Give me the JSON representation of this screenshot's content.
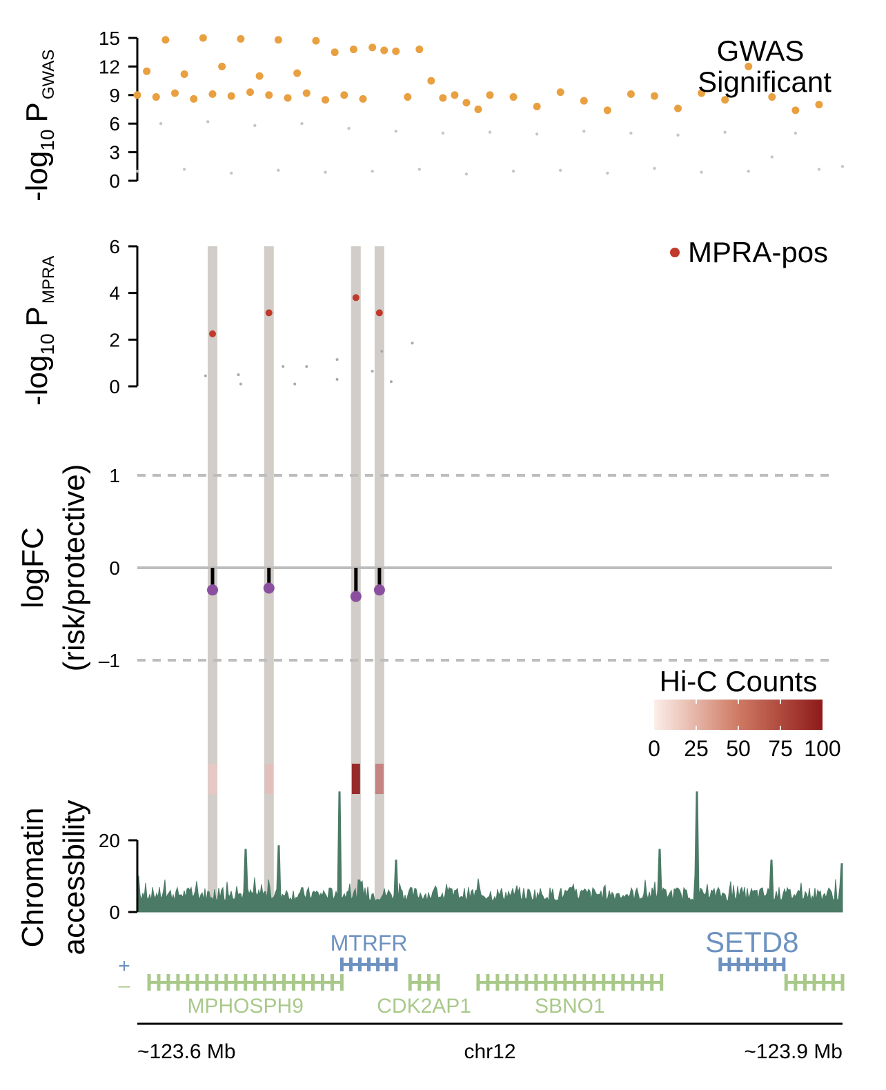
{
  "colors": {
    "gwas_sig": "#e8a040",
    "gwas_nonsig": "#c6c6c6",
    "mpra_pos": "#c0392b",
    "logfc_point": "#8a4f9e",
    "highlight_band": "#d2cdc8",
    "accessibility": "#4b7a66",
    "gene_minus": "#a9c98a",
    "gene_plus": "#6d92c0",
    "hic_low": "#fbeee9",
    "hic_high": "#8e1a1a"
  },
  "chart_data": [
    {
      "type": "scatter",
      "panel": "gwas",
      "ylabel_main": "-log",
      "ylabel_sub": "10",
      "ylabel_p": "P",
      "ylabel_subscript": "GWAS",
      "ylim": [
        0,
        15
      ],
      "yticks": [
        "0",
        "3",
        "6",
        "9",
        "12",
        "15"
      ],
      "legend": {
        "line1": "GWAS",
        "line2": "Significant",
        "position": "top-right"
      },
      "significant_points_x": [
        123.6,
        123.604,
        123.608,
        123.612,
        123.616,
        123.62,
        123.624,
        123.628,
        123.632,
        123.636,
        123.64,
        123.644,
        123.648,
        123.652,
        123.656,
        123.66,
        123.664,
        123.668,
        123.672,
        123.676,
        123.68,
        123.684,
        123.688,
        123.692,
        123.696,
        123.7,
        123.705,
        123.71,
        123.715,
        123.72,
        123.725,
        123.73,
        123.735,
        123.74,
        123.745,
        123.75,
        123.76,
        123.77,
        123.78,
        123.79,
        123.8,
        123.81,
        123.82,
        123.83,
        123.84,
        123.85,
        123.86,
        123.87,
        123.88,
        123.89
      ],
      "significant_points_y": [
        9.0,
        11.5,
        8.8,
        14.8,
        9.2,
        11.2,
        8.6,
        15.0,
        9.1,
        12.0,
        8.9,
        14.9,
        9.3,
        11.0,
        9.0,
        14.8,
        8.7,
        11.3,
        9.2,
        14.7,
        8.5,
        13.5,
        9.0,
        13.8,
        8.6,
        14.0,
        13.7,
        13.6,
        8.8,
        13.8,
        10.5,
        8.7,
        9.0,
        8.2,
        7.5,
        9.0,
        8.8,
        7.8,
        9.3,
        8.4,
        7.4,
        9.1,
        8.9,
        7.6,
        9.2,
        8.5,
        12.0,
        8.8,
        7.4,
        8.0
      ],
      "nonsignificant_band_note": "",
      "nonsig_points_x": [
        123.6,
        123.61,
        123.62,
        123.63,
        123.64,
        123.65,
        123.66,
        123.67,
        123.68,
        123.69,
        123.7,
        123.71,
        123.72,
        123.73,
        123.74,
        123.75,
        123.76,
        123.77,
        123.78,
        123.79,
        123.8,
        123.81,
        123.82,
        123.83,
        123.84,
        123.85,
        123.86,
        123.87,
        123.88,
        123.89,
        123.9
      ],
      "nonsig_points_y": [
        1.0,
        6.0,
        1.2,
        6.2,
        0.8,
        5.8,
        1.1,
        6.0,
        0.9,
        5.5,
        1.0,
        5.2,
        1.2,
        5.0,
        0.7,
        5.1,
        1.0,
        4.9,
        1.1,
        5.2,
        0.8,
        5.0,
        1.3,
        4.8,
        0.9,
        5.1,
        1.0,
        2.5,
        5.0,
        1.2,
        1.5
      ]
    },
    {
      "type": "scatter",
      "panel": "mpra",
      "ylabel_main": "-log",
      "ylabel_sub": "10",
      "ylabel_p": "P",
      "ylabel_subscript": "MPRA",
      "ylim": [
        0,
        6
      ],
      "yticks": [
        "0",
        "2",
        "4",
        "6"
      ],
      "legend": {
        "label": "MPRA-pos",
        "position": "top-right"
      },
      "positive_points_x": [
        123.632,
        123.656,
        123.693,
        123.703
      ],
      "positive_points_y": [
        2.25,
        3.15,
        3.8,
        3.15
      ],
      "other_points_x": [
        123.629,
        123.643,
        123.644,
        123.662,
        123.667,
        123.672,
        123.685,
        123.685,
        123.7,
        123.704,
        123.708,
        123.717
      ],
      "other_points_y": [
        0.45,
        0.5,
        0.1,
        0.85,
        0.1,
        0.85,
        1.15,
        0.3,
        0.65,
        1.5,
        0.2,
        1.85
      ]
    },
    {
      "type": "scatter",
      "panel": "logfc",
      "ylabel_line1": "logFC",
      "ylabel_line2": "(risk/protective)",
      "ylim": [
        -1.3,
        1.3
      ],
      "yticks": [
        "1",
        "0",
        "–1"
      ],
      "tick_values": [
        1,
        0,
        -1
      ],
      "points_x": [
        123.632,
        123.656,
        123.693,
        123.703
      ],
      "points_y": [
        -0.24,
        -0.22,
        -0.31,
        -0.24
      ]
    },
    {
      "type": "heatmap",
      "panel": "hic",
      "title": "Hi-C Counts",
      "scale_ticks": [
        "0",
        "25",
        "50",
        "75",
        "100"
      ],
      "range": [
        0,
        100
      ],
      "x": [
        123.632,
        123.656,
        123.693,
        123.703
      ],
      "values": [
        18,
        22,
        92,
        50
      ]
    },
    {
      "type": "area",
      "panel": "accessibility",
      "ylabel_line1": "Chromatin",
      "ylabel_line2": "accessbility",
      "yticks": [
        "0",
        "20"
      ],
      "tick_values": [
        0,
        20
      ],
      "ylim": [
        0,
        40
      ],
      "peaks_x": [
        123.6,
        123.646,
        123.66,
        123.686,
        123.694,
        123.71,
        123.822,
        123.838,
        123.87,
        123.9
      ],
      "peaks_y": [
        10,
        17.5,
        18.5,
        33.5,
        9,
        14.5,
        17.5,
        33.5,
        14.5,
        13.5
      ],
      "baseline_y": 5
    }
  ],
  "genes": {
    "strand_plus": "+",
    "strand_minus": "–",
    "plus": [
      {
        "name": "MTRFR",
        "start": 123.687,
        "end": 123.71
      },
      {
        "name": "SETD8",
        "start": 123.848,
        "end": 123.875
      }
    ],
    "minus": [
      {
        "name": "MPHOSPH9",
        "start": 123.605,
        "end": 123.687
      },
      {
        "name": "CDK2AP1",
        "start": 123.716,
        "end": 123.728
      },
      {
        "name": "SBNO1",
        "start": 123.745,
        "end": 123.823
      },
      {
        "name": "",
        "start": 123.876,
        "end": 123.9
      }
    ]
  },
  "x_axis": {
    "left_label": "~123.6 Mb",
    "center_label": "chr12",
    "right_label": "~123.9 Mb",
    "xlim": [
      123.6,
      123.9
    ]
  },
  "highlight_positions": [
    123.632,
    123.656,
    123.693,
    123.703
  ]
}
